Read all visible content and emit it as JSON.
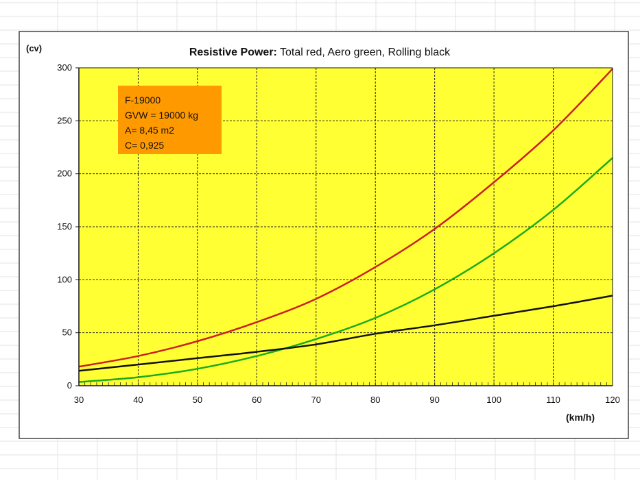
{
  "chart_data": {
    "type": "line",
    "title_bold": "Resistive Power:",
    "title_rest": " Total red, Aero green, Rolling black",
    "ylabel": "(cv)",
    "xlabel": "(km/h)",
    "xlim": [
      30,
      120
    ],
    "ylim": [
      0,
      300
    ],
    "xticks": [
      30,
      40,
      50,
      60,
      70,
      80,
      90,
      100,
      110,
      120
    ],
    "yticks": [
      0,
      50,
      100,
      150,
      200,
      250,
      300
    ],
    "grid": true,
    "plot_background": "#ffff33",
    "x": [
      30,
      40,
      50,
      60,
      70,
      80,
      90,
      100,
      110,
      120
    ],
    "series": [
      {
        "color": "#cc1f1f",
        "values": [
          18,
          28,
          42,
          60,
          82,
          112,
          148,
          192,
          241,
          299
        ]
      },
      {
        "color": "#1aab1a",
        "values": [
          3.5,
          8,
          16,
          28,
          44,
          64,
          91,
          125,
          166,
          215
        ]
      },
      {
        "color": "#111111",
        "values": [
          14,
          20,
          26,
          32,
          39,
          49,
          57,
          66,
          75,
          85
        ]
      }
    ],
    "annotation": {
      "background": "#ff9900",
      "lines": [
        "F-19000",
        "GVW = 19000 kg",
        "A= 8,45 m2",
        "C= 0,925"
      ]
    }
  }
}
